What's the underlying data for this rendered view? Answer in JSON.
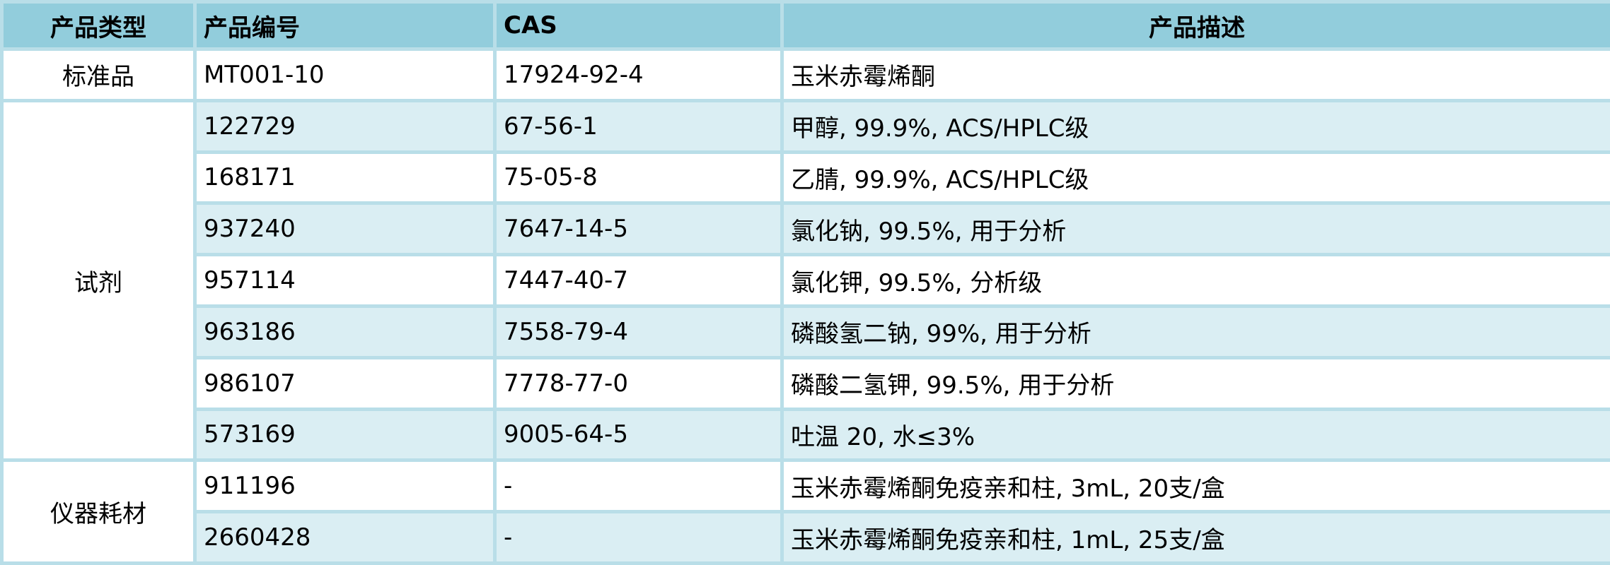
{
  "colors": {
    "header_bg": "#92CDDC",
    "stripe_bg": "#DAEEF3",
    "border": "#B9DEE8"
  },
  "headers": [
    "产品类型",
    "产品编号",
    "CAS",
    "产品描述"
  ],
  "groups": [
    {
      "type": "标准品",
      "rows": [
        {
          "id": "MT001-10",
          "cas": "17924-92-4",
          "desc": "玉米赤霉烯酮"
        }
      ]
    },
    {
      "type": "试剂",
      "rows": [
        {
          "id": "122729",
          "cas": "67-56-1",
          "desc": "甲醇, 99.9%, ACS/HPLC级"
        },
        {
          "id": "168171",
          "cas": "75-05-8",
          "desc": "乙腈, 99.9%, ACS/HPLC级"
        },
        {
          "id": "937240",
          "cas": "7647-14-5",
          "desc": "氯化钠, 99.5%, 用于分析"
        },
        {
          "id": "957114",
          "cas": "7447-40-7",
          "desc": "氯化钾, 99.5%, 分析级"
        },
        {
          "id": "963186",
          "cas": "7558-79-4",
          "desc": "磷酸氢二钠, 99%, 用于分析"
        },
        {
          "id": "986107",
          "cas": "7778-77-0",
          "desc": "磷酸二氢钾, 99.5%, 用于分析"
        },
        {
          "id": "573169",
          "cas": "9005-64-5",
          "desc": "吐温 20, 水≤3%"
        }
      ]
    },
    {
      "type": "仪器耗材",
      "rows": [
        {
          "id": "911196",
          "cas": "-",
          "desc": "玉米赤霉烯酮免疫亲和柱, 3mL, 20支/盒"
        },
        {
          "id": "2660428",
          "cas": "-",
          "desc": "玉米赤霉烯酮免疫亲和柱, 1mL, 25支/盒"
        }
      ]
    }
  ]
}
